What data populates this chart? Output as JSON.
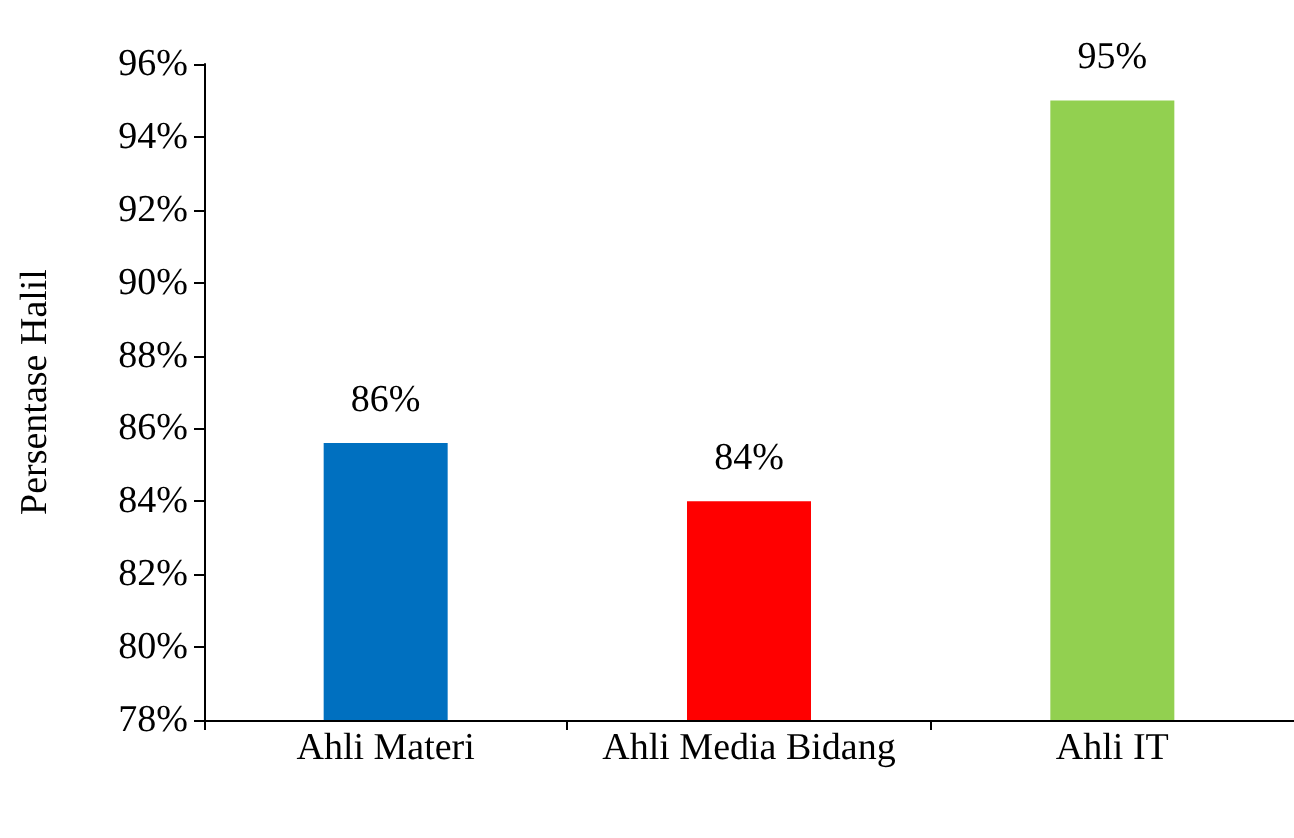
{
  "chart_data": {
    "type": "bar",
    "ylabel": "Persentase Halil",
    "categories": [
      "Ahli Materi",
      "Ahli Media Bidang",
      "Ahli IT"
    ],
    "values": [
      85.6,
      84,
      95
    ],
    "colors": [
      "#0070c0",
      "#ff0000",
      "#92d050"
    ],
    "value_labels": [
      "86%",
      "84%",
      "95%"
    ],
    "ylim": [
      78,
      96
    ],
    "yticks": [
      {
        "value": 78,
        "label": "78%"
      },
      {
        "value": 80,
        "label": "80%"
      },
      {
        "value": 82,
        "label": "82%"
      },
      {
        "value": 84,
        "label": "84%"
      },
      {
        "value": 86,
        "label": "86%"
      },
      {
        "value": 88,
        "label": "88%"
      },
      {
        "value": 90,
        "label": "90%"
      },
      {
        "value": 92,
        "label": "92%"
      },
      {
        "value": 94,
        "label": "94%"
      },
      {
        "value": 96,
        "label": "96%"
      }
    ],
    "grid": false
  }
}
